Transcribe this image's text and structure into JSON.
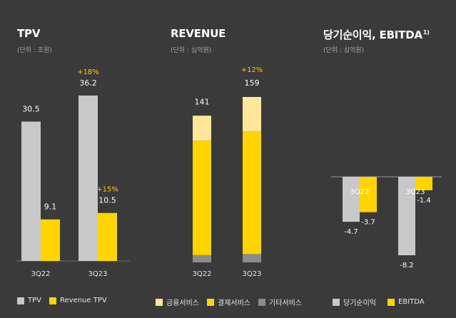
{
  "colors": {
    "background": "#3a3a3a",
    "gray": "#c8c8c8",
    "yellow": "#ffd400",
    "light_yellow": "#ffe79a",
    "dark_gray": "#8c8c8c",
    "growth_label": "#ffcc00"
  },
  "chart_data": [
    {
      "type": "bar",
      "title": "TPV",
      "unit": "(단위 : 조원)",
      "categories": [
        "3Q22",
        "3Q23"
      ],
      "series": [
        {
          "name": "TPV",
          "color": "#c8c8c8",
          "values": [
            30.5,
            36.2
          ],
          "labels": [
            "30.5",
            "36.2"
          ]
        },
        {
          "name": "Revenue TPV",
          "color": "#ffd400",
          "values": [
            9.1,
            10.5
          ],
          "labels": [
            "9.1",
            "10.5"
          ]
        }
      ],
      "annotations": [
        {
          "text": "+18%",
          "category": "3Q23",
          "series": "TPV"
        },
        {
          "text": "+15%",
          "category": "3Q23",
          "series": "Revenue TPV"
        }
      ],
      "ylim": [
        0,
        36.2
      ],
      "legend": "bottom"
    },
    {
      "type": "bar",
      "stacked": true,
      "title": "REVENUE",
      "unit": "(단위 : 십억원)",
      "categories": [
        "3Q22",
        "3Q23"
      ],
      "series": [
        {
          "name": "기타서비스",
          "color": "#8c8c8c",
          "values": [
            7,
            8
          ]
        },
        {
          "name": "결제서비스",
          "color": "#ffd400",
          "values": [
            110,
            118
          ]
        },
        {
          "name": "금융서비스",
          "color": "#ffe79a",
          "values": [
            24,
            33
          ]
        }
      ],
      "legend_order": [
        "금융서비스",
        "결제서비스",
        "기타서비스"
      ],
      "totals": [
        141,
        159
      ],
      "total_labels": [
        "141",
        "159"
      ],
      "annotations": [
        {
          "text": "+12%",
          "category": "3Q23"
        }
      ],
      "ylim": [
        0,
        159
      ],
      "legend": "bottom"
    },
    {
      "type": "bar",
      "title": "당기순이익, EBITDA",
      "title_sup": "1)",
      "unit": "(단위 : 십억원)",
      "categories": [
        "3Q22",
        "3Q23"
      ],
      "series": [
        {
          "name": "당기순이익",
          "color": "#c8c8c8",
          "values": [
            -4.7,
            -8.2
          ],
          "labels": [
            "-4.7",
            "-8.2"
          ]
        },
        {
          "name": "EBITDA",
          "color": "#ffd400",
          "values": [
            -3.7,
            -1.4
          ],
          "labels": [
            "-3.7",
            "-1.4"
          ]
        }
      ],
      "ylim": [
        -8.2,
        0
      ],
      "legend": "bottom"
    }
  ]
}
